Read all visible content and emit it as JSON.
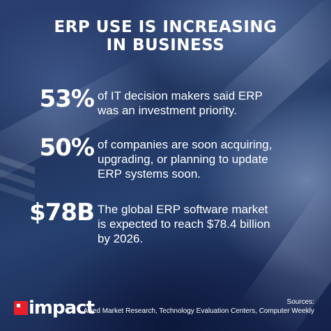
{
  "title": {
    "line1": "ERP USE IS INCREASING",
    "line2": "IN BUSINESS"
  },
  "stats": [
    {
      "value": "53%",
      "lines": [
        "of IT decision makers said ERP",
        "was an investment priority."
      ]
    },
    {
      "value": "50%",
      "lines": [
        "of companies are soon acquiring,",
        "upgrading, or planning to update",
        "ERP systems soon."
      ]
    },
    {
      "value": "$78B",
      "lines": [
        "The global ERP software market",
        "is expected to reach $78.4 billion",
        "by 2026."
      ]
    }
  ],
  "logo": {
    "text": "impact",
    "icon": "impact-logo-mark",
    "accent_color": "#e8202a"
  },
  "sources": {
    "label": "Sources:",
    "text": "Allied Market Research, Technology Evaluation Centers, Computer Weekly"
  },
  "colors": {
    "background": "#22375f",
    "text": "#ffffff"
  }
}
